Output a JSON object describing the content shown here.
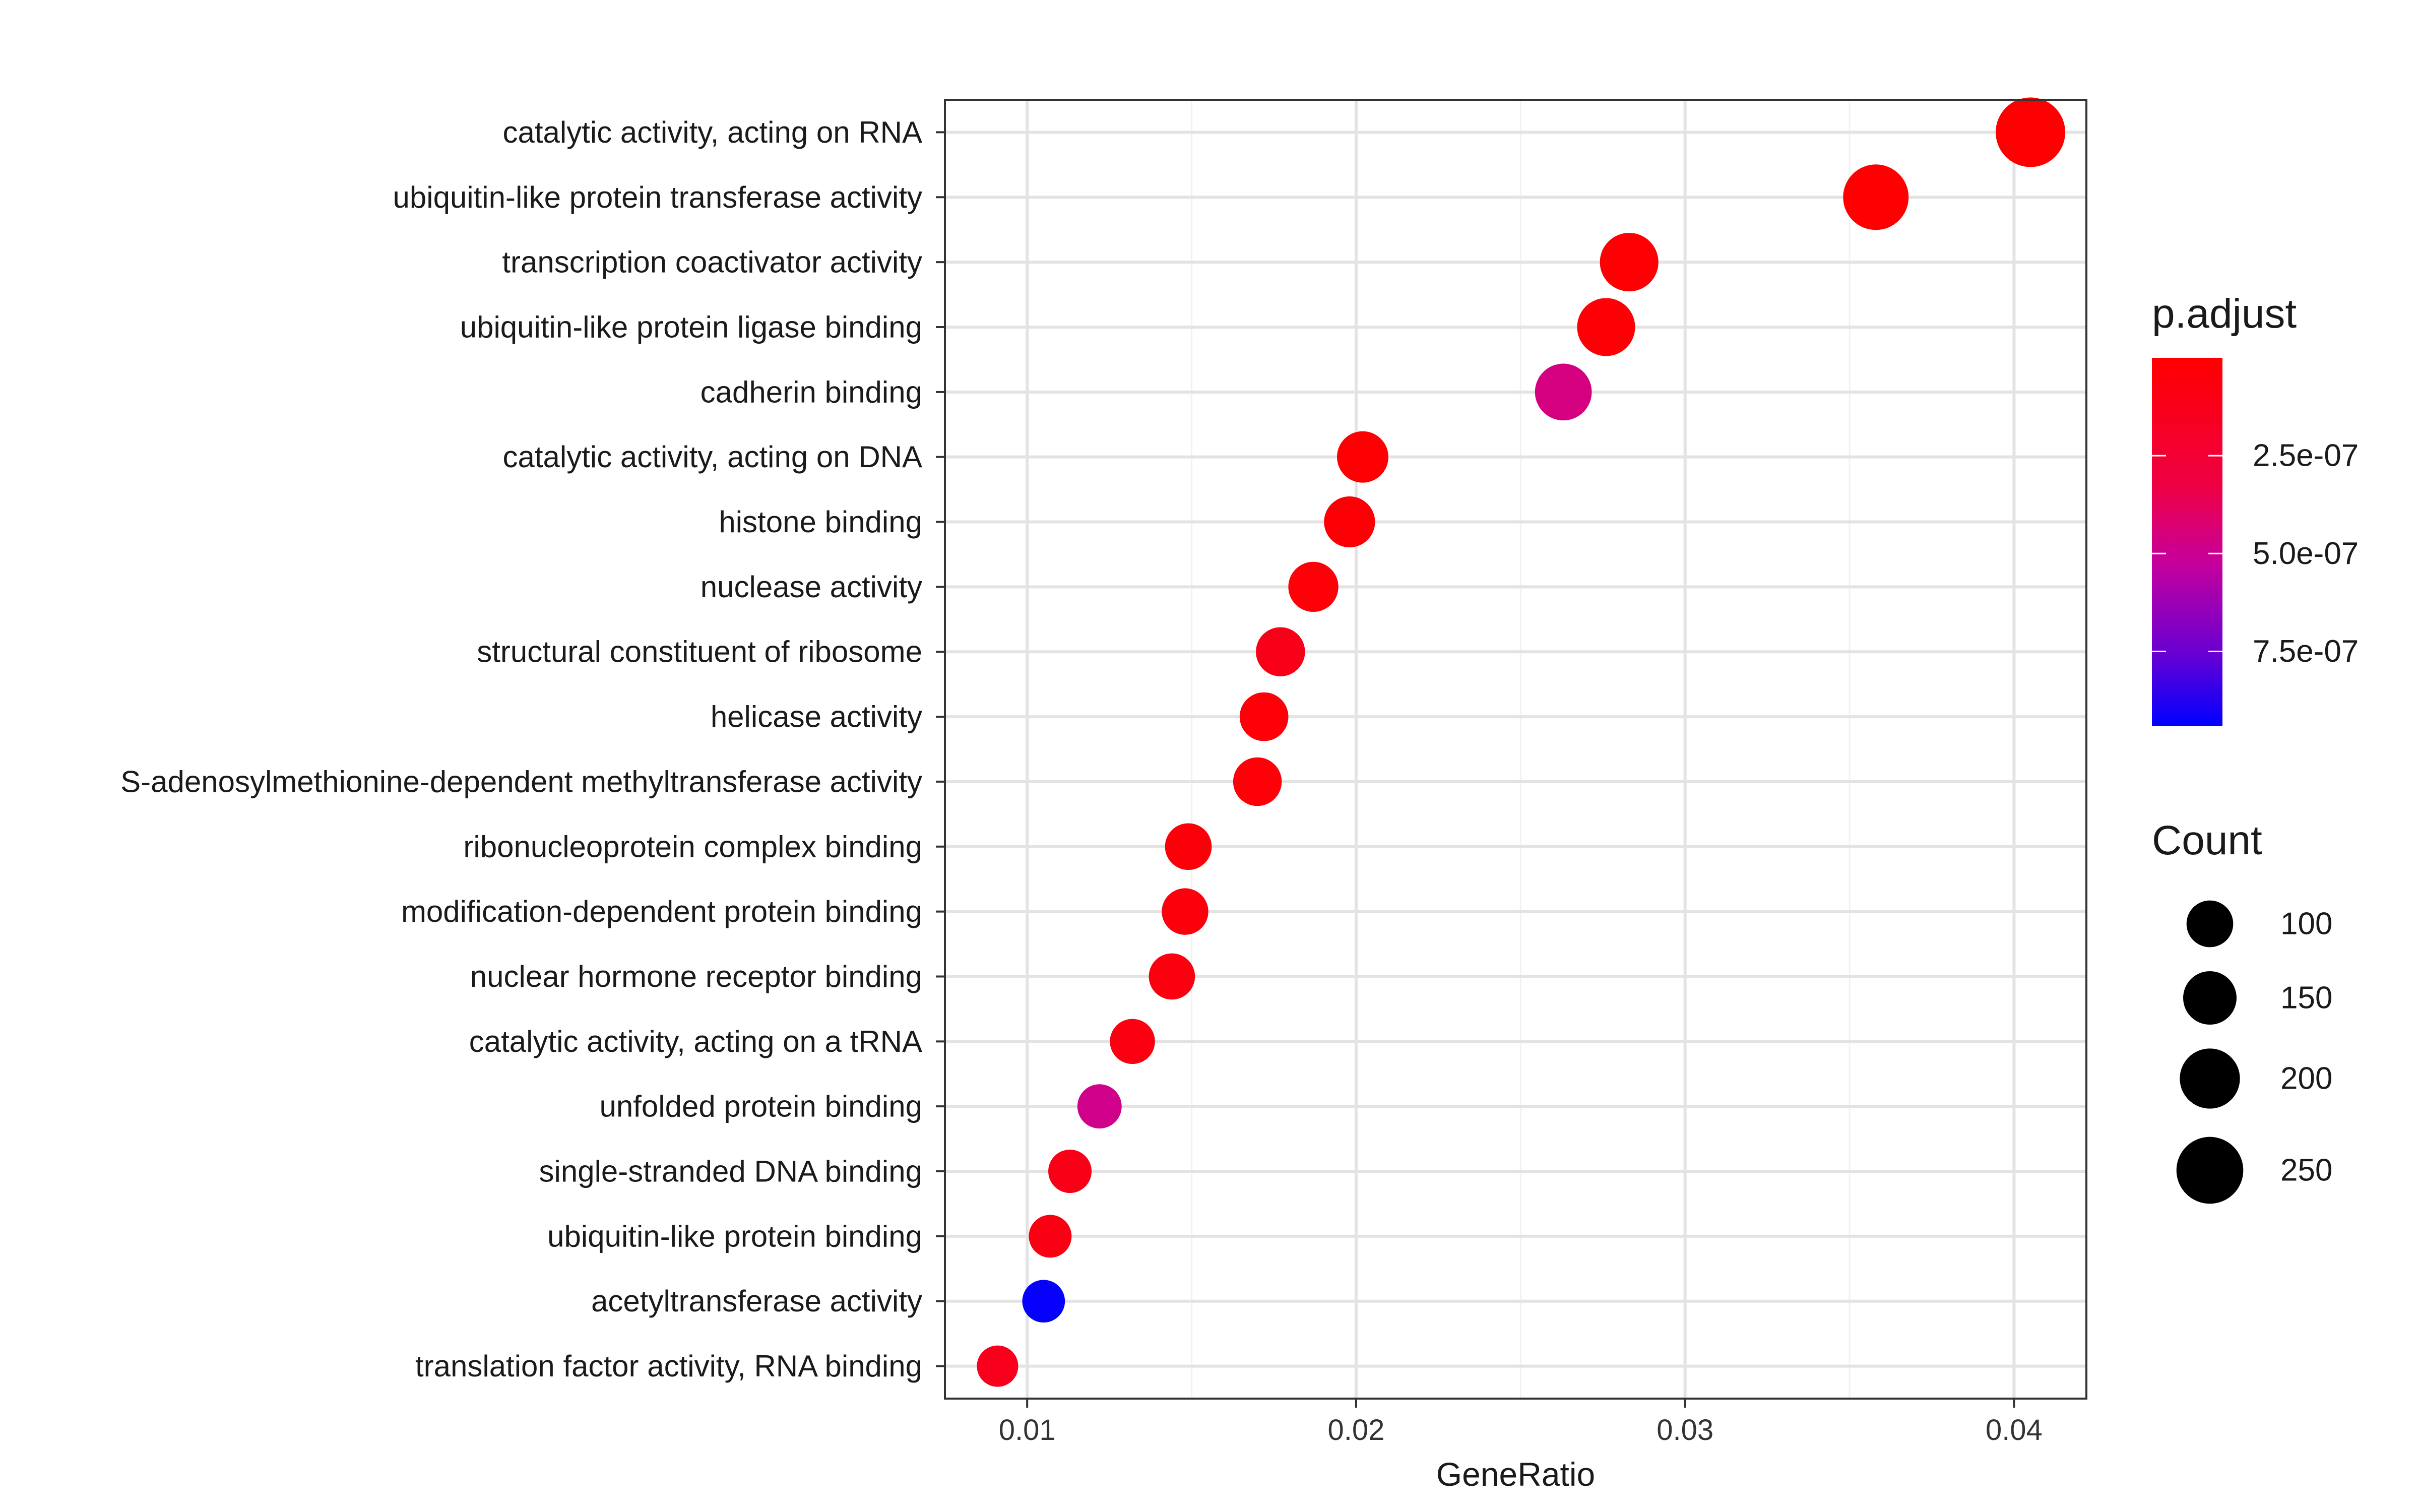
{
  "chart_data": {
    "type": "scatter",
    "subtype": "dot-plot",
    "title": "",
    "xlabel": "GeneRatio",
    "ylabel": "",
    "xlim": [
      0.0075,
      0.0422
    ],
    "xticks": [
      0.01,
      0.02,
      0.03,
      0.04
    ],
    "xtick_labels": [
      "0.01",
      "0.02",
      "0.03",
      "0.04"
    ],
    "grid": true,
    "categories": [
      "catalytic activity, acting on RNA",
      "ubiquitin-like protein transferase activity",
      "transcription coactivator activity",
      "ubiquitin-like protein ligase binding",
      "cadherin binding",
      "catalytic activity, acting on DNA",
      "histone binding",
      "nuclease activity",
      "structural constituent of ribosome",
      "helicase activity",
      "S-adenosylmethionine-dependent methyltransferase activity",
      "ribonucleoprotein complex binding",
      "modification-dependent protein binding",
      "nuclear hormone receptor binding",
      "catalytic activity, acting on a tRNA",
      "unfolded protein binding",
      "single-stranded DNA binding",
      "ubiquitin-like protein binding",
      "acetyltransferase activity",
      "translation factor activity, RNA binding"
    ],
    "gene_ratio": [
      0.0405,
      0.0358,
      0.0283,
      0.0276,
      0.0263,
      0.0202,
      0.0198,
      0.0187,
      0.0177,
      0.0172,
      0.017,
      0.0149,
      0.0148,
      0.0144,
      0.0132,
      0.0122,
      0.0113,
      0.0107,
      0.0105,
      0.0091
    ],
    "count": [
      270,
      240,
      188,
      184,
      175,
      135,
      132,
      125,
      118,
      115,
      114,
      100,
      99,
      96,
      88,
      82,
      75,
      71,
      70,
      60
    ],
    "p_adjust": [
      1e-10,
      5e-09,
      2e-08,
      3e-08,
      4.6e-07,
      2e-08,
      3e-08,
      4e-08,
      1.2e-07,
      4e-08,
      4e-08,
      5e-08,
      6e-08,
      7e-08,
      8e-08,
      4.8e-07,
      1.1e-07,
      9e-08,
      9.3e-07,
      1.3e-07
    ],
    "color_scale": {
      "title": "p.adjust",
      "min": 0,
      "max": 9.4e-07,
      "low_color": "#FF0000",
      "high_color": "#0000FF",
      "ticks": [
        2.5e-07,
        5e-07,
        7.5e-07
      ],
      "tick_labels": [
        "2.5e-07",
        "5.0e-07",
        "7.5e-07"
      ]
    },
    "size_scale": {
      "title": "Count",
      "values": [
        100,
        150,
        200,
        250
      ],
      "labels": [
        "100",
        "150",
        "200",
        "250"
      ]
    },
    "legend_position": "right"
  }
}
